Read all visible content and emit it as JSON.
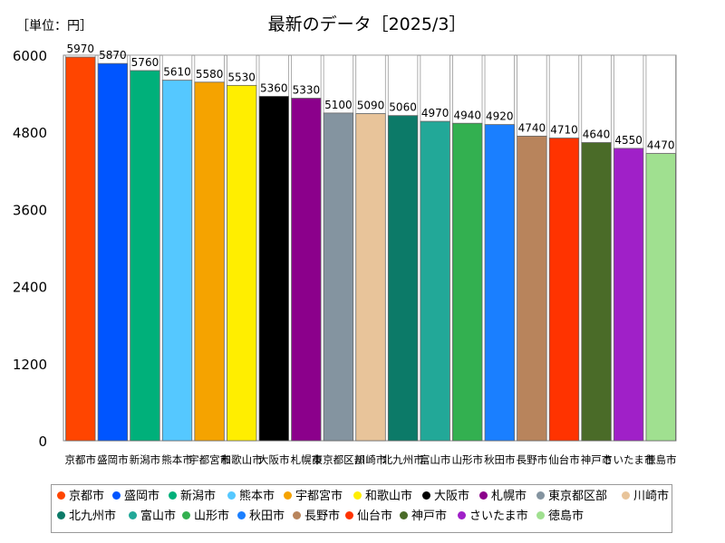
{
  "unit_label": "［単位：円］",
  "chart_data": {
    "type": "bar",
    "title": "最新のデータ［2025/3］",
    "ylabel": "",
    "xlabel": "",
    "ylim": [
      0,
      6000
    ],
    "yticks": [
      0,
      1200,
      2400,
      3600,
      4800,
      6000
    ],
    "categories": [
      "京都市",
      "盛岡市",
      "新潟市",
      "熊本市",
      "宇都宮市",
      "和歌山市",
      "大阪市",
      "札幌市",
      "東京都区部",
      "川崎市",
      "北九州市",
      "富山市",
      "山形市",
      "秋田市",
      "長野市",
      "仙台市",
      "神戸市",
      "さいたま市",
      "徳島市"
    ],
    "values": [
      5970,
      5870,
      5760,
      5610,
      5580,
      5530,
      5360,
      5330,
      5100,
      5090,
      5060,
      4970,
      4940,
      4920,
      4740,
      4710,
      4640,
      4550,
      4470
    ],
    "colors": [
      "#ff4500",
      "#0055ff",
      "#00b07a",
      "#55c8ff",
      "#f5a300",
      "#ffee00",
      "#000000",
      "#8b008b",
      "#8494a0",
      "#e8c49a",
      "#0c7a68",
      "#22a898",
      "#33b050",
      "#1a7fff",
      "#b8845c",
      "#ff3300",
      "#4a6b28",
      "#a020c8",
      "#a0e090"
    ],
    "legend_position": "bottom"
  }
}
